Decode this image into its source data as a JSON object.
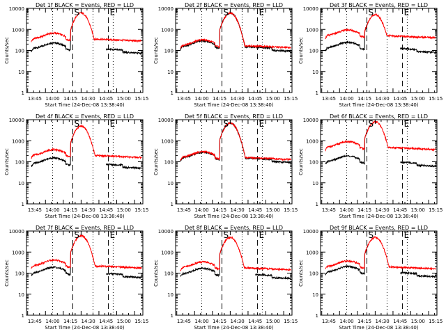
{
  "chart_data": {
    "type": "line",
    "layout": "3x3 grid",
    "colors": {
      "events": "#000000",
      "lld": "#ff0000",
      "marker": "#000000"
    },
    "x_ticks": [
      "13:45",
      "14:00",
      "14:15",
      "14:30",
      "14:45",
      "15:00",
      "15:15"
    ],
    "y_ticks": [
      "1",
      "10",
      "100",
      "1000",
      "10000"
    ],
    "scale": "log-y",
    "ylim": [
      1,
      10000
    ],
    "x_minutes_range": [
      -1,
      97
    ],
    "ylabel": "Counts/sec",
    "xlabel": "Start Time (24-Dec-08 13:38:40)",
    "dotted_lines_minutes": [
      21,
      55,
      72
    ],
    "dashed_lines_minutes": [
      38,
      68
    ],
    "marker_labels": [
      {
        "label": "S",
        "minute": 38
      },
      {
        "label": "E",
        "minute": 68
      }
    ],
    "panels": [
      {
        "title": "Det 1f BLACK = Events, RED = LLD",
        "flare_peak": 6000,
        "black_base": 120,
        "red_base": 350,
        "gap": [
          39,
          66
        ]
      },
      {
        "title": "Det 2f BLACK = Events, RED = LLD",
        "flare_peak": 6000,
        "black_base": 150,
        "red_base": 170,
        "gap": null
      },
      {
        "title": "Det 3f BLACK = Events, RED = LLD",
        "flare_peak": 5000,
        "black_base": 130,
        "red_base": 500,
        "gap": [
          39,
          66
        ]
      },
      {
        "title": "Det 4f BLACK = Events, RED = LLD",
        "flare_peak": 5000,
        "black_base": 80,
        "red_base": 200,
        "gap": [
          39,
          66
        ]
      },
      {
        "title": "Det 5f BLACK = Events, RED = LLD",
        "flare_peak": 7000,
        "black_base": 150,
        "red_base": 160,
        "gap": null
      },
      {
        "title": "Det 6f BLACK = Events, RED = LLD",
        "flare_peak": 8000,
        "black_base": 100,
        "red_base": 480,
        "gap": [
          39,
          66
        ]
      },
      {
        "title": "Det 7f BLACK = Events, RED = LLD",
        "flare_peak": 6000,
        "black_base": 100,
        "red_base": 220,
        "gap": [
          39,
          66
        ]
      },
      {
        "title": "Det 8f BLACK = Events, RED = LLD",
        "flare_peak": 5000,
        "black_base": 90,
        "red_base": 180,
        "gap": [
          39,
          66
        ]
      },
      {
        "title": "Det 9f BLACK = Events, RED = LLD",
        "flare_peak": 5000,
        "black_base": 110,
        "red_base": 200,
        "gap": [
          39,
          66
        ]
      }
    ]
  }
}
